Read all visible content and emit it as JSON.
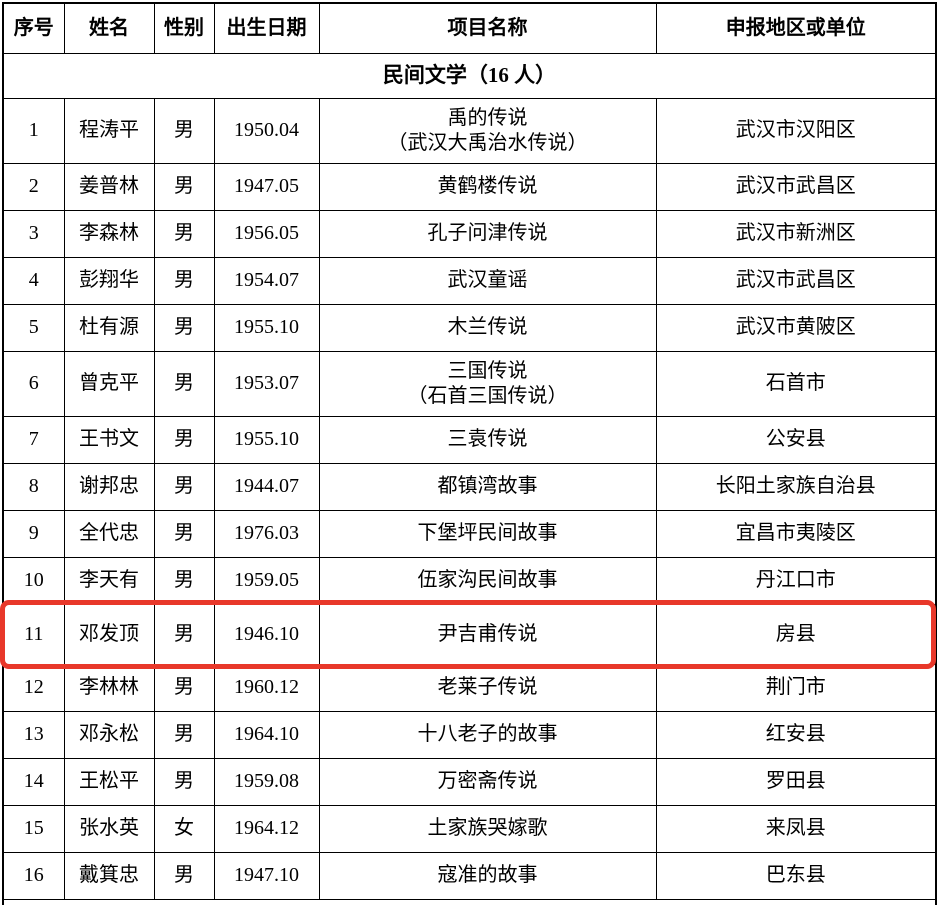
{
  "table": {
    "headers": [
      "序号",
      "姓名",
      "性别",
      "出生日期",
      "项目名称",
      "申报地区或单位"
    ],
    "section_title": "民间文学（16 人）",
    "rows": [
      {
        "no": "1",
        "name": "程涛平",
        "gender": "男",
        "birth": "1950.04",
        "project": "禹的传说",
        "project_sub": "（武汉大禹治水传说）",
        "region": "武汉市汉阳区"
      },
      {
        "no": "2",
        "name": "姜普林",
        "gender": "男",
        "birth": "1947.05",
        "project": "黄鹤楼传说",
        "region": "武汉市武昌区"
      },
      {
        "no": "3",
        "name": "李森林",
        "gender": "男",
        "birth": "1956.05",
        "project": "孔子问津传说",
        "region": "武汉市新洲区"
      },
      {
        "no": "4",
        "name": "彭翔华",
        "gender": "男",
        "birth": "1954.07",
        "project": "武汉童谣",
        "region": "武汉市武昌区"
      },
      {
        "no": "5",
        "name": "杜有源",
        "gender": "男",
        "birth": "1955.10",
        "project": "木兰传说",
        "region": "武汉市黄陂区"
      },
      {
        "no": "6",
        "name": "曾克平",
        "gender": "男",
        "birth": "1953.07",
        "project": "三国传说",
        "project_sub": "（石首三国传说）",
        "region": "石首市"
      },
      {
        "no": "7",
        "name": "王书文",
        "gender": "男",
        "birth": "1955.10",
        "project": "三袁传说",
        "region": "公安县"
      },
      {
        "no": "8",
        "name": "谢邦忠",
        "gender": "男",
        "birth": "1944.07",
        "project": "都镇湾故事",
        "region": "长阳土家族自治县"
      },
      {
        "no": "9",
        "name": "全代忠",
        "gender": "男",
        "birth": "1976.03",
        "project": "下堡坪民间故事",
        "region": "宜昌市夷陵区"
      },
      {
        "no": "10",
        "name": "李天有",
        "gender": "男",
        "birth": "1959.05",
        "project": "伍家沟民间故事",
        "region": "丹江口市"
      },
      {
        "no": "11",
        "name": "邓发顶",
        "gender": "男",
        "birth": "1946.10",
        "project": "尹吉甫传说",
        "region": "房县"
      },
      {
        "no": "12",
        "name": "李林林",
        "gender": "男",
        "birth": "1960.12",
        "project": "老莱子传说",
        "region": "荆门市"
      },
      {
        "no": "13",
        "name": "邓永松",
        "gender": "男",
        "birth": "1964.10",
        "project": "十八老子的故事",
        "region": "红安县"
      },
      {
        "no": "14",
        "name": "王松平",
        "gender": "男",
        "birth": "1959.08",
        "project": "万密斋传说",
        "region": "罗田县"
      },
      {
        "no": "15",
        "name": "张水英",
        "gender": "女",
        "birth": "1964.12",
        "project": "土家族哭嫁歌",
        "region": "来凤县"
      },
      {
        "no": "16",
        "name": "戴箕忠",
        "gender": "男",
        "birth": "1947.10",
        "project": "寇准的故事",
        "region": "巴东县"
      }
    ]
  },
  "highlight": {
    "row_no": "11",
    "color": "#e8382a"
  }
}
